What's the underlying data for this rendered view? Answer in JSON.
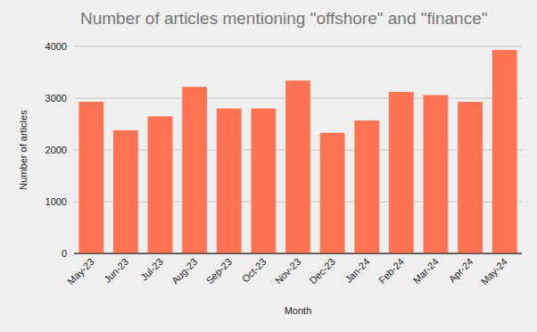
{
  "chart_data": {
    "type": "bar",
    "title": "Number of articles mentioning \"offshore\" and \"finance\"",
    "x_label": "Month",
    "y_label": "Number of articles",
    "categories": [
      "May-23",
      "Jun-23",
      "Jul-23",
      "Aug-23",
      "Sep-23",
      "Oct-23",
      "Nov-23",
      "Dec-23",
      "Jan-24",
      "Feb-24",
      "Mar-24",
      "Apr-24",
      "May-24"
    ],
    "values": [
      2930,
      2380,
      2650,
      3220,
      2800,
      2800,
      3340,
      2330,
      2570,
      3120,
      3060,
      2930,
      3930
    ],
    "color": "#ff7352",
    "ylim": [
      0,
      4000
    ],
    "yticks": [
      0,
      1000,
      2000,
      3000,
      4000
    ],
    "grid": true
  }
}
